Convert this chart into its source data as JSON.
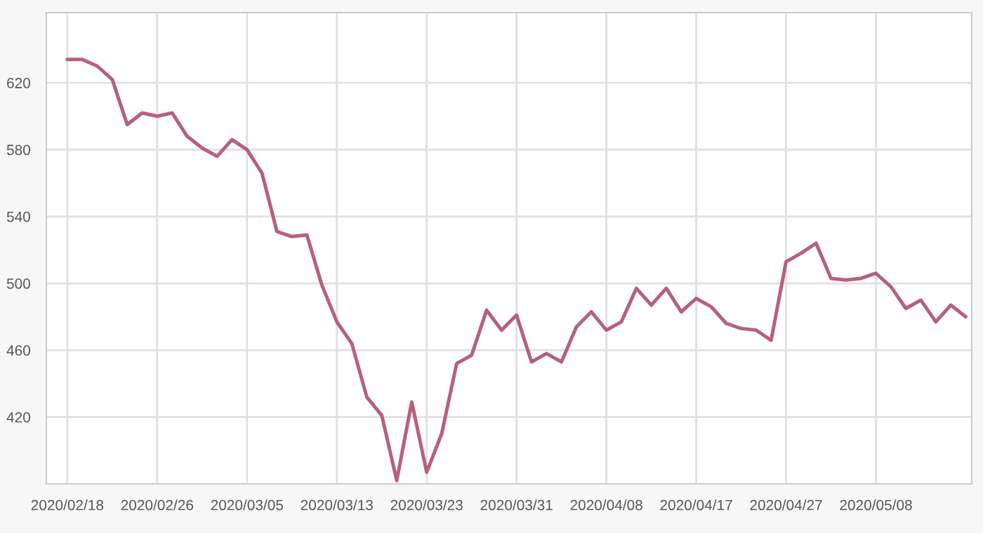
{
  "chart_data": {
    "type": "line",
    "categories": [
      "2020/02/18",
      null,
      null,
      null,
      null,
      null,
      "2020/02/26",
      null,
      null,
      null,
      null,
      null,
      "2020/03/05",
      null,
      null,
      null,
      null,
      null,
      "2020/03/13",
      null,
      null,
      null,
      null,
      null,
      "2020/03/23",
      null,
      null,
      null,
      null,
      null,
      "2020/03/31",
      null,
      null,
      null,
      null,
      null,
      "2020/04/08",
      null,
      null,
      null,
      null,
      null,
      "2020/04/17",
      null,
      null,
      null,
      null,
      null,
      "2020/04/27",
      null,
      null,
      null,
      null,
      null,
      "2020/05/08",
      null,
      null,
      null,
      null,
      null,
      null
    ],
    "series": [
      {
        "color": "#b5607f",
        "values": [
          634,
          634,
          630,
          622,
          595,
          602,
          600,
          602,
          588,
          581,
          576,
          586,
          580,
          566,
          531,
          528,
          529,
          499,
          477,
          464,
          432,
          421,
          382,
          429,
          387,
          410,
          452,
          457,
          484,
          472,
          481,
          453,
          458,
          453,
          474,
          483,
          472,
          477,
          497,
          487,
          497,
          483,
          491,
          486,
          476,
          473,
          472,
          466,
          513,
          518,
          524,
          503,
          502,
          503,
          506,
          498,
          485,
          490,
          477,
          487,
          480
        ]
      }
    ],
    "ylim": [
      380,
      662
    ],
    "yticks": [
      420,
      460,
      500,
      540,
      580,
      620
    ],
    "grid": true,
    "marker": "none",
    "line_style": "solid"
  }
}
